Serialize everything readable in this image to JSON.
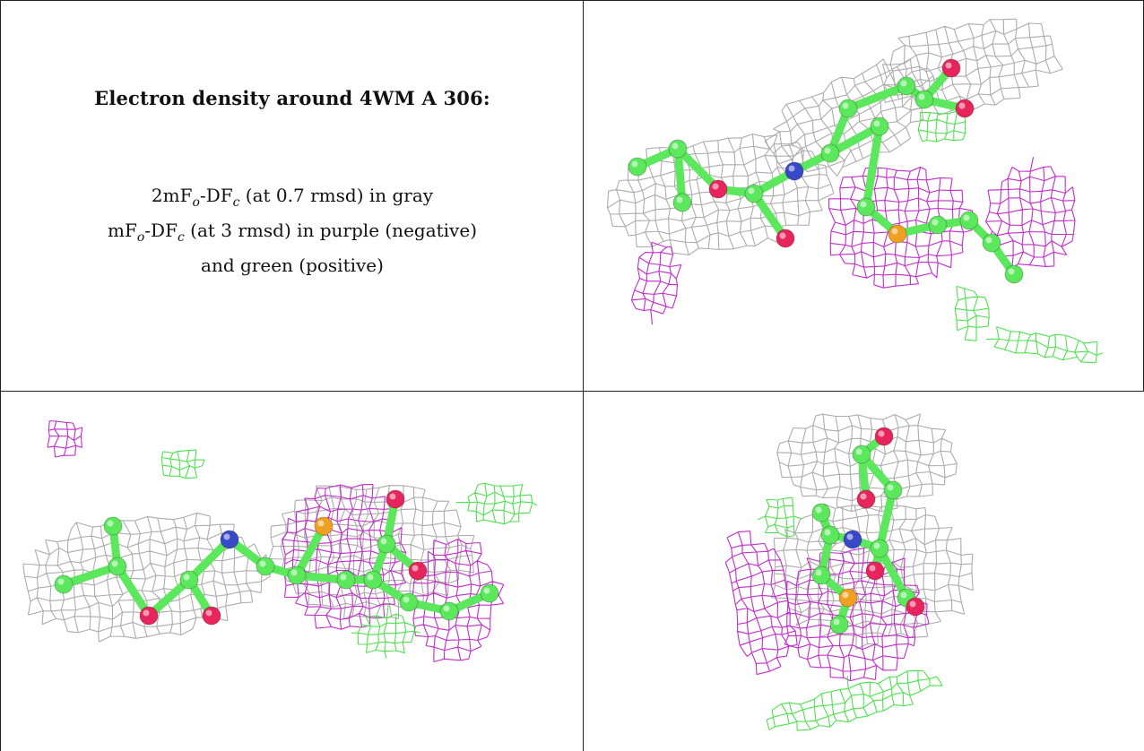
{
  "caption": {
    "title": "Electron density around 4WM A 306:",
    "line1_main": "2mF",
    "line1_sub1": "o",
    "line1_mid": "-DF",
    "line1_sub2": "c",
    "line1_rest": " (at 0.7 rmsd) in gray",
    "line2_main": "mF",
    "line2_sub1": "o",
    "line2_mid": "-DF",
    "line2_sub2": "c",
    "line2_rest": " (at 3 rmsd) in purple (negative)",
    "line3": "and green (positive)"
  },
  "colors": {
    "mesh_2fofc": "#a8a8a8",
    "mesh_negative": "#c020c8",
    "mesh_positive": "#44e044",
    "carbon": "#5ce85c",
    "oxygen": "#e8245c",
    "nitrogen": "#3848c8",
    "sulfur": "#f0a020"
  },
  "panels": [
    "top-right-view",
    "bottom-left-view",
    "bottom-right-view"
  ]
}
